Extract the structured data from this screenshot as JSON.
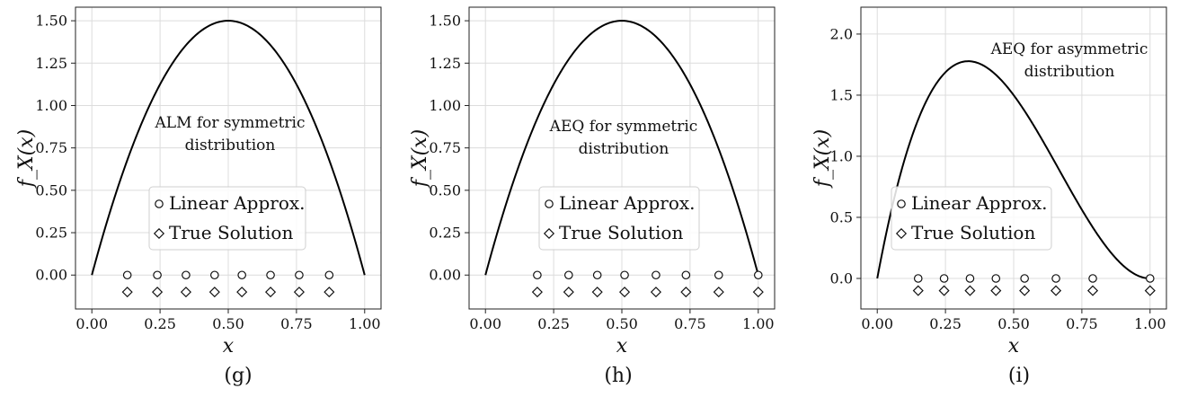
{
  "panels": [
    {
      "sublabel": "(g)"
    },
    {
      "sublabel": "(h)"
    },
    {
      "sublabel": "(i)"
    }
  ],
  "chart_data": [
    {
      "type": "line",
      "ylabel": "f_X(x)",
      "xlabel": "x",
      "xlim": [
        -0.06,
        1.06
      ],
      "ylim": [
        -0.2,
        1.58
      ],
      "xticks": [
        0.0,
        0.25,
        0.5,
        0.75,
        1.0
      ],
      "xtick_labels": [
        "0.00",
        "0.25",
        "0.50",
        "0.75",
        "1.00"
      ],
      "yticks": [
        0.0,
        0.25,
        0.5,
        0.75,
        1.0,
        1.25,
        1.5
      ],
      "ytick_labels": [
        "0.00",
        "0.25",
        "0.50",
        "0.75",
        "1.00",
        "1.25",
        "1.50"
      ],
      "grid": true,
      "curve": {
        "formula": "6x(1-x)",
        "kind": "beta_2_2"
      },
      "annotation": [
        "ALM for symmetric",
        "distribution"
      ],
      "legend": {
        "entries": [
          "Linear Approx.",
          "True Solution"
        ],
        "markers": [
          "circle",
          "diamond"
        ],
        "placement": "center"
      },
      "linear_approx": {
        "marker": "circle",
        "y": 0.0,
        "x": [
          0.13,
          0.24,
          0.345,
          0.45,
          0.55,
          0.655,
          0.76,
          0.87
        ]
      },
      "true_solution": {
        "marker": "diamond",
        "y": -0.1,
        "x": [
          0.13,
          0.24,
          0.345,
          0.45,
          0.55,
          0.655,
          0.76,
          0.87
        ]
      }
    },
    {
      "type": "line",
      "ylabel": "f_X(x)",
      "xlabel": "x",
      "xlim": [
        -0.06,
        1.06
      ],
      "ylim": [
        -0.2,
        1.58
      ],
      "xticks": [
        0.0,
        0.25,
        0.5,
        0.75,
        1.0
      ],
      "xtick_labels": [
        "0.00",
        "0.25",
        "0.50",
        "0.75",
        "1.00"
      ],
      "yticks": [
        0.0,
        0.25,
        0.5,
        0.75,
        1.0,
        1.25,
        1.5
      ],
      "ytick_labels": [
        "0.00",
        "0.25",
        "0.50",
        "0.75",
        "1.00",
        "1.25",
        "1.50"
      ],
      "grid": true,
      "curve": {
        "formula": "6x(1-x)",
        "kind": "beta_2_2"
      },
      "annotation": [
        "AEQ for symmetric",
        "distribution"
      ],
      "legend": {
        "entries": [
          "Linear Approx.",
          "True Solution"
        ],
        "markers": [
          "circle",
          "diamond"
        ],
        "placement": "center"
      },
      "linear_approx": {
        "marker": "circle",
        "y": 0.0,
        "x": [
          0.19,
          0.305,
          0.41,
          0.51,
          0.625,
          0.735,
          0.855,
          1.0
        ]
      },
      "true_solution": {
        "marker": "diamond",
        "y": -0.1,
        "x": [
          0.19,
          0.305,
          0.41,
          0.51,
          0.625,
          0.735,
          0.855,
          1.0
        ]
      }
    },
    {
      "type": "line",
      "ylabel": "f_X(x)",
      "xlabel": "x",
      "xlim": [
        -0.06,
        1.06
      ],
      "ylim": [
        -0.25,
        2.22
      ],
      "xticks": [
        0.0,
        0.25,
        0.5,
        0.75,
        1.0
      ],
      "xtick_labels": [
        "0.00",
        "0.25",
        "0.50",
        "0.75",
        "1.00"
      ],
      "yticks": [
        0.0,
        0.5,
        1.0,
        1.5,
        2.0
      ],
      "ytick_labels": [
        "0.0",
        "0.5",
        "1.0",
        "1.5",
        "2.0"
      ],
      "grid": true,
      "curve": {
        "formula": "12x(1-x)^2",
        "kind": "beta_2_3"
      },
      "annotation": [
        "AEQ for asymmetric",
        "distribution"
      ],
      "legend": {
        "entries": [
          "Linear Approx.",
          "True Solution"
        ],
        "markers": [
          "circle",
          "diamond"
        ],
        "placement": "center-left"
      },
      "linear_approx": {
        "marker": "circle",
        "y": 0.0,
        "x": [
          0.15,
          0.245,
          0.34,
          0.435,
          0.54,
          0.655,
          0.79,
          1.0
        ]
      },
      "true_solution": {
        "marker": "diamond",
        "y": -0.1,
        "x": [
          0.15,
          0.245,
          0.34,
          0.435,
          0.54,
          0.655,
          0.79,
          1.0
        ]
      }
    }
  ]
}
